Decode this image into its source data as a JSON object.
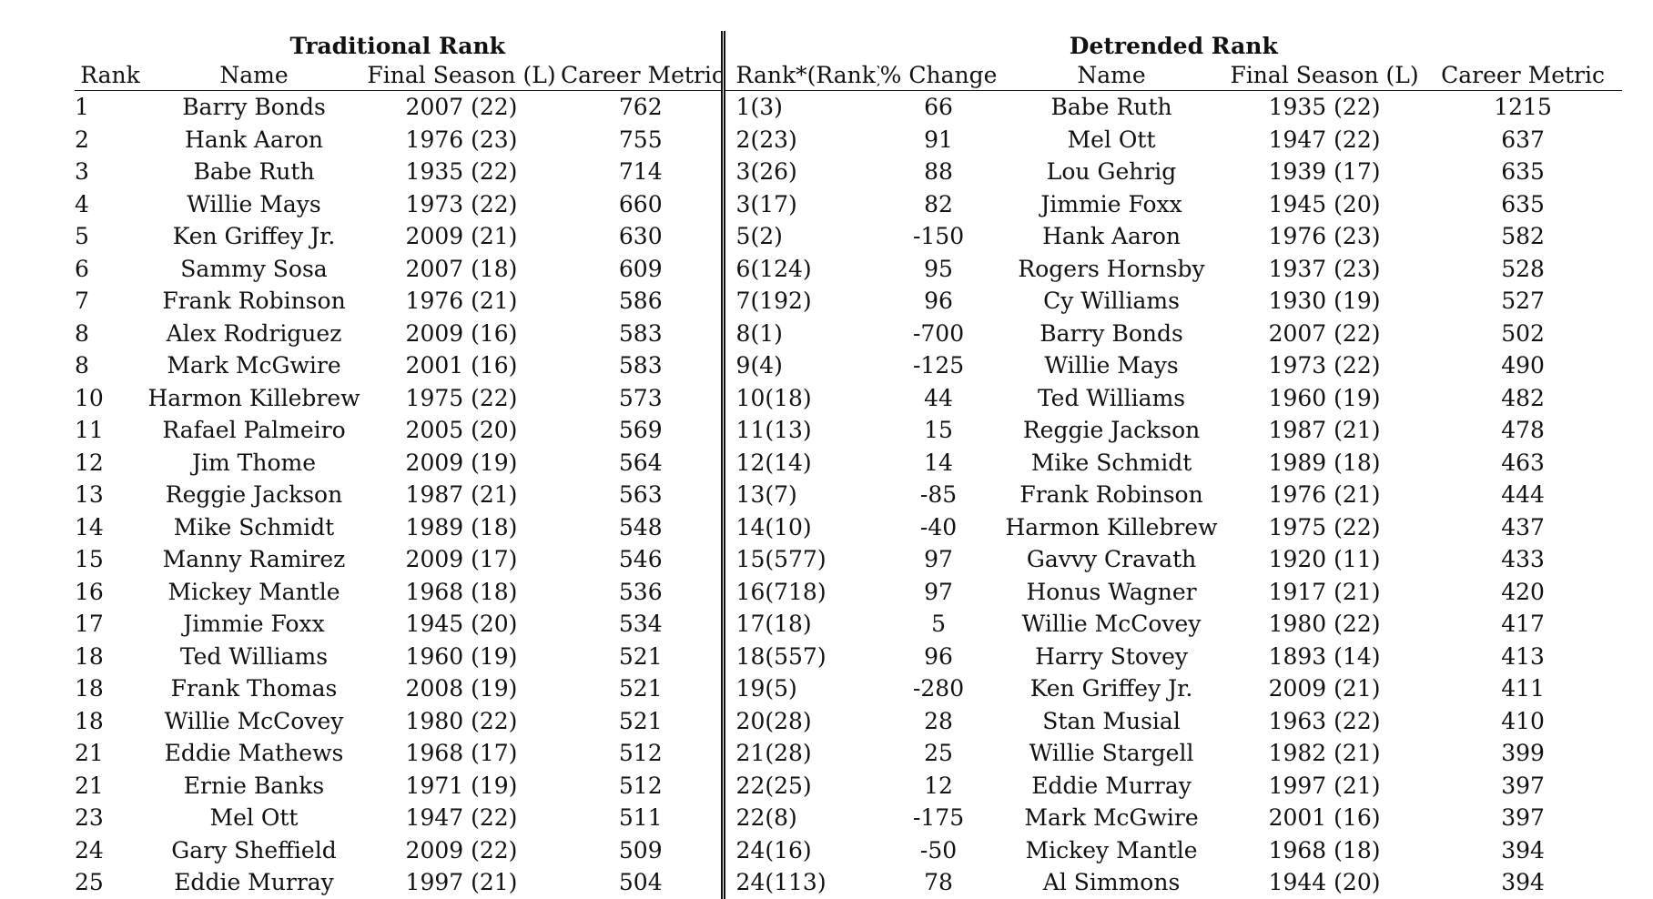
{
  "table": {
    "group_headers": {
      "traditional": "Traditional Rank",
      "detrended": "Detrended Rank"
    },
    "columns": {
      "rank": "Rank",
      "name": "Name",
      "final_season": "Final Season (L)",
      "career_metric": "Career Metric",
      "rank_star": "Rank*(Rank)",
      "pct_change": "% Change",
      "name2": "Name",
      "final_season2": "Final Season (L)",
      "career_metric2": "Career Metric"
    },
    "rows": [
      [
        "1",
        "Barry Bonds",
        "2007 (22)",
        "762",
        "1(3)",
        "66",
        "Babe Ruth",
        "1935 (22)",
        "1215"
      ],
      [
        "2",
        "Hank Aaron",
        "1976 (23)",
        "755",
        "2(23)",
        "91",
        "Mel Ott",
        "1947 (22)",
        "637"
      ],
      [
        "3",
        "Babe Ruth",
        "1935 (22)",
        "714",
        "3(26)",
        "88",
        "Lou Gehrig",
        "1939 (17)",
        "635"
      ],
      [
        "4",
        "Willie Mays",
        "1973 (22)",
        "660",
        "3(17)",
        "82",
        "Jimmie Foxx",
        "1945 (20)",
        "635"
      ],
      [
        "5",
        "Ken Griffey Jr.",
        "2009 (21)",
        "630",
        "5(2)",
        "-150",
        "Hank Aaron",
        "1976 (23)",
        "582"
      ],
      [
        "6",
        "Sammy Sosa",
        "2007 (18)",
        "609",
        "6(124)",
        "95",
        "Rogers Hornsby",
        "1937 (23)",
        "528"
      ],
      [
        "7",
        "Frank Robinson",
        "1976 (21)",
        "586",
        "7(192)",
        "96",
        "Cy Williams",
        "1930 (19)",
        "527"
      ],
      [
        "8",
        "Alex Rodriguez",
        "2009 (16)",
        "583",
        "8(1)",
        "-700",
        "Barry Bonds",
        "2007 (22)",
        "502"
      ],
      [
        "8",
        "Mark McGwire",
        "2001 (16)",
        "583",
        "9(4)",
        "-125",
        "Willie Mays",
        "1973 (22)",
        "490"
      ],
      [
        "10",
        "Harmon Killebrew",
        "1975 (22)",
        "573",
        "10(18)",
        "44",
        "Ted Williams",
        "1960 (19)",
        "482"
      ],
      [
        "11",
        "Rafael Palmeiro",
        "2005 (20)",
        "569",
        "11(13)",
        "15",
        "Reggie Jackson",
        "1987 (21)",
        "478"
      ],
      [
        "12",
        "Jim Thome",
        "2009 (19)",
        "564",
        "12(14)",
        "14",
        "Mike Schmidt",
        "1989 (18)",
        "463"
      ],
      [
        "13",
        "Reggie Jackson",
        "1987 (21)",
        "563",
        "13(7)",
        "-85",
        "Frank Robinson",
        "1976 (21)",
        "444"
      ],
      [
        "14",
        "Mike Schmidt",
        "1989 (18)",
        "548",
        "14(10)",
        "-40",
        "Harmon Killebrew",
        "1975 (22)",
        "437"
      ],
      [
        "15",
        "Manny Ramirez",
        "2009 (17)",
        "546",
        "15(577)",
        "97",
        "Gavvy Cravath",
        "1920 (11)",
        "433"
      ],
      [
        "16",
        "Mickey Mantle",
        "1968 (18)",
        "536",
        "16(718)",
        "97",
        "Honus Wagner",
        "1917 (21)",
        "420"
      ],
      [
        "17",
        "Jimmie Foxx",
        "1945 (20)",
        "534",
        "17(18)",
        "5",
        "Willie McCovey",
        "1980 (22)",
        "417"
      ],
      [
        "18",
        "Ted Williams",
        "1960 (19)",
        "521",
        "18(557)",
        "96",
        "Harry Stovey",
        "1893 (14)",
        "413"
      ],
      [
        "18",
        "Frank Thomas",
        "2008 (19)",
        "521",
        "19(5)",
        "-280",
        "Ken Griffey Jr.",
        "2009 (21)",
        "411"
      ],
      [
        "18",
        "Willie McCovey",
        "1980 (22)",
        "521",
        "20(28)",
        "28",
        "Stan Musial",
        "1963 (22)",
        "410"
      ],
      [
        "21",
        "Eddie Mathews",
        "1968 (17)",
        "512",
        "21(28)",
        "25",
        "Willie Stargell",
        "1982 (21)",
        "399"
      ],
      [
        "21",
        "Ernie Banks",
        "1971 (19)",
        "512",
        "22(25)",
        "12",
        "Eddie Murray",
        "1997 (21)",
        "397"
      ],
      [
        "23",
        "Mel Ott",
        "1947 (22)",
        "511",
        "22(8)",
        "-175",
        "Mark McGwire",
        "2001 (16)",
        "397"
      ],
      [
        "24",
        "Gary Sheffield",
        "2009 (22)",
        "509",
        "24(16)",
        "-50",
        "Mickey Mantle",
        "1968 (18)",
        "394"
      ],
      [
        "25",
        "Eddie Murray",
        "1997 (21)",
        "504",
        "24(113)",
        "78",
        "Al Simmons",
        "1944 (20)",
        "394"
      ]
    ]
  }
}
